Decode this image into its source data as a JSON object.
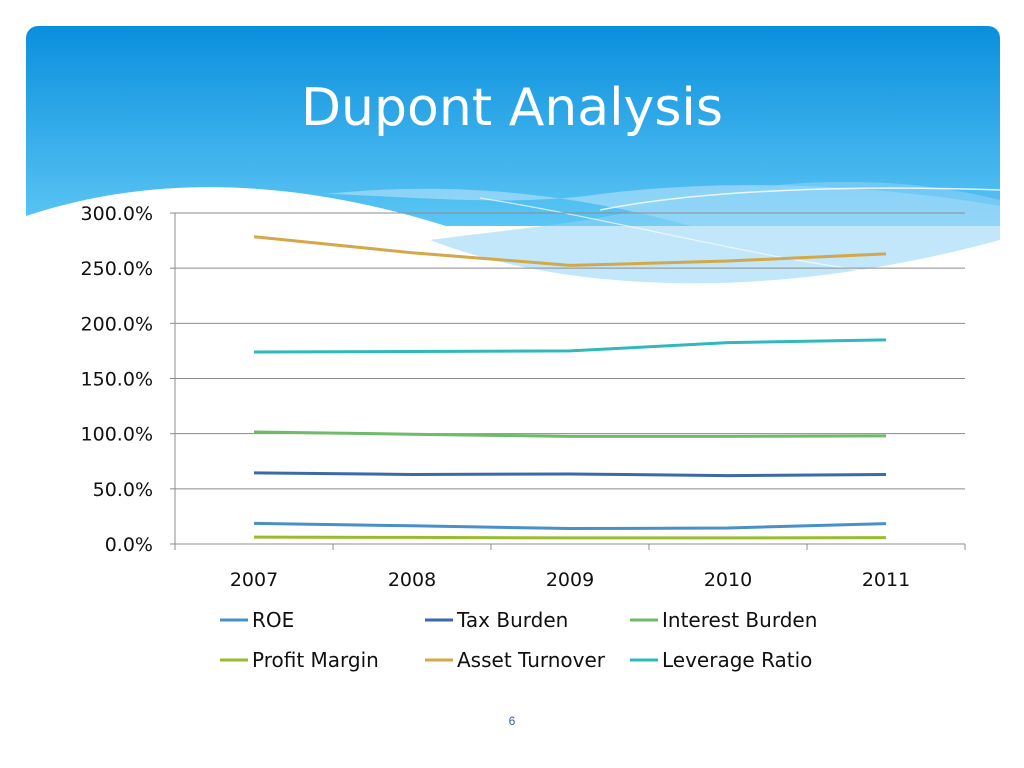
{
  "slide": {
    "title": "Dupont Analysis",
    "page_number": "6"
  },
  "colors": {
    "header_top": "#0a8fdd",
    "header_bottom": "#5cc6f5"
  },
  "chart_data": {
    "type": "line",
    "title": "",
    "xlabel": "",
    "ylabel": "",
    "categories": [
      "2007",
      "2008",
      "2009",
      "2010",
      "2011"
    ],
    "ylim": [
      0,
      300
    ],
    "yticks": [
      "0.0%",
      "50.0%",
      "100.0%",
      "150.0%",
      "200.0%",
      "250.0%",
      "300.0%"
    ],
    "grid": true,
    "legend_position": "bottom",
    "series": [
      {
        "name": "ROE",
        "color": "#4a90c8",
        "values": [
          18.7,
          16.5,
          14.0,
          14.5,
          18.5
        ]
      },
      {
        "name": "Tax Burden",
        "color": "#3a6aa8",
        "values": [
          64.5,
          63.0,
          63.5,
          62.0,
          63.0
        ]
      },
      {
        "name": "Interest Burden",
        "color": "#6fbb6a",
        "values": [
          101.5,
          99.5,
          97.5,
          97.5,
          98.0
        ]
      },
      {
        "name": "Profit Margin",
        "color": "#9abb2e",
        "values": [
          6.2,
          6.0,
          5.5,
          5.5,
          5.8
        ]
      },
      {
        "name": "Asset Turnover",
        "color": "#d4a84a",
        "values": [
          278.5,
          264.0,
          252.5,
          256.5,
          263.0
        ]
      },
      {
        "name": "Leverage Ratio",
        "color": "#2fb9b9",
        "values": [
          174.0,
          174.5,
          175.0,
          182.5,
          185.0
        ]
      }
    ]
  }
}
